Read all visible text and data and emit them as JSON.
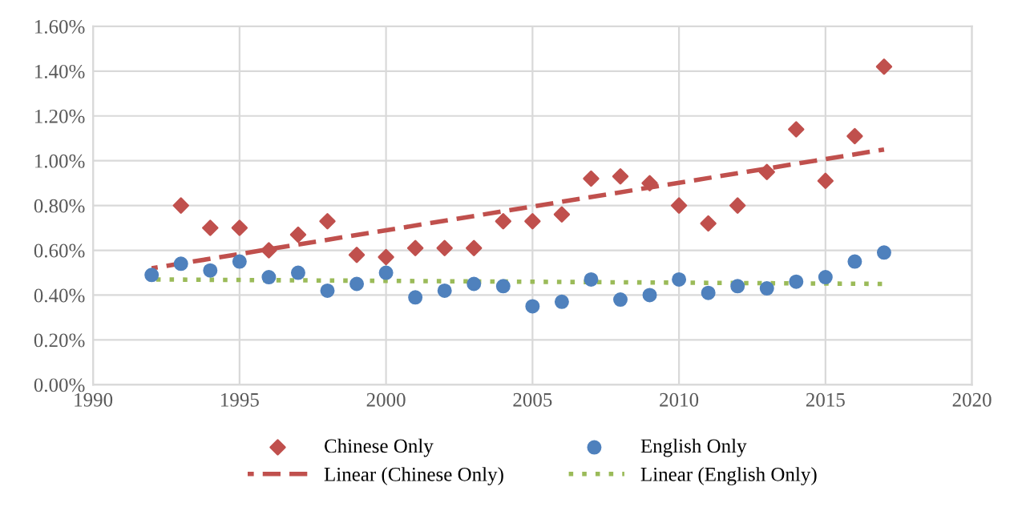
{
  "chart_data": {
    "type": "scatter",
    "x": [
      1992,
      1993,
      1994,
      1995,
      1996,
      1997,
      1998,
      1999,
      2000,
      2001,
      2002,
      2003,
      2004,
      2005,
      2006,
      2007,
      2008,
      2009,
      2010,
      2011,
      2012,
      2013,
      2014,
      2015,
      2016,
      2017
    ],
    "series": [
      {
        "name": "Chinese Only",
        "marker": "diamond",
        "color": "#c0504d",
        "x": [
          1993,
          1994,
          1995,
          1996,
          1997,
          1998,
          1999,
          2000,
          2001,
          2002,
          2003,
          2004,
          2005,
          2006,
          2007,
          2008,
          2009,
          2010,
          2011,
          2012,
          2013,
          2014,
          2015,
          2016,
          2017
        ],
        "values": [
          0.8,
          0.7,
          0.7,
          0.6,
          0.67,
          0.73,
          0.58,
          0.57,
          0.61,
          0.61,
          0.61,
          0.73,
          0.73,
          0.76,
          0.92,
          0.93,
          0.9,
          0.8,
          0.72,
          0.8,
          0.95,
          1.14,
          0.91,
          1.11,
          1.42
        ]
      },
      {
        "name": "English Only",
        "marker": "circle",
        "color": "#4f81bd",
        "values": [
          0.49,
          0.54,
          0.51,
          0.55,
          0.48,
          0.5,
          0.42,
          0.45,
          0.5,
          0.39,
          0.42,
          0.45,
          0.44,
          0.35,
          0.37,
          0.47,
          0.38,
          0.4,
          0.47,
          0.41,
          0.44,
          0.43,
          0.46,
          0.48,
          0.55,
          0.59
        ]
      },
      {
        "name": "Linear (Chinese Only)",
        "type": "line",
        "line_style": "dashed",
        "color": "#c0504d",
        "x": [
          1992,
          2017
        ],
        "values": [
          0.52,
          1.05
        ]
      },
      {
        "name": "Linear (English Only)",
        "type": "line",
        "line_style": "dotted",
        "color": "#9bbb59",
        "x": [
          1992,
          2017
        ],
        "values": [
          0.47,
          0.45
        ]
      }
    ],
    "xlim": [
      1990,
      2020
    ],
    "xticks": [
      1990,
      1995,
      2000,
      2005,
      2010,
      2015,
      2020
    ],
    "ylim": [
      0,
      1.6
    ],
    "yticks": [
      {
        "value": 0,
        "label": "0.00%"
      },
      {
        "value": 0.2,
        "label": "0.20%"
      },
      {
        "value": 0.4,
        "label": "0.40%"
      },
      {
        "value": 0.6,
        "label": "0.60%"
      },
      {
        "value": 0.8,
        "label": "0.80%"
      },
      {
        "value": 1.0,
        "label": "1.00%"
      },
      {
        "value": 1.2,
        "label": "1.20%"
      },
      {
        "value": 1.4,
        "label": "1.40%"
      },
      {
        "value": 1.6,
        "label": "1.60%"
      }
    ],
    "grid": true,
    "legend": "bottom"
  }
}
